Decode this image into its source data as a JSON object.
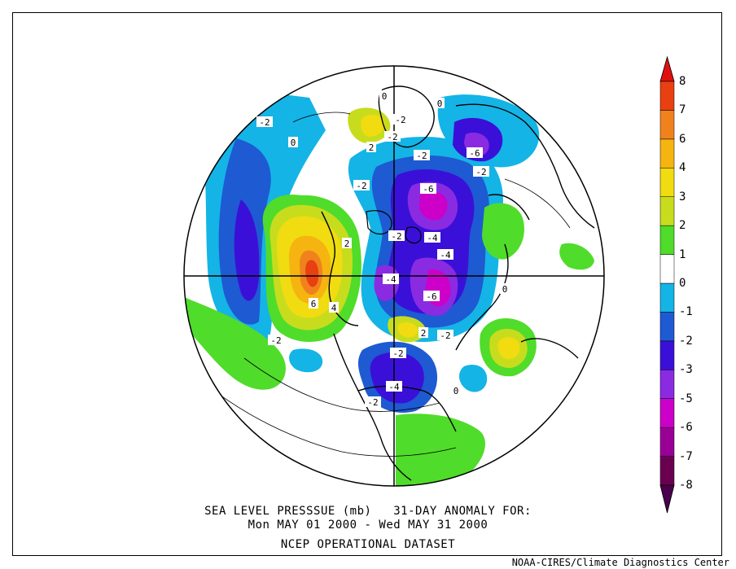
{
  "title": {
    "line1": "SEA LEVEL PRESSSUE (mb)   31-DAY ANOMALY FOR:",
    "line2": "Mon MAY 01 2000 - Wed MAY 31 2000",
    "line3": "NCEP OPERATIONAL DATASET"
  },
  "credit": "NOAA-CIRES/Climate Diagnostics Center",
  "colorbar": {
    "labels": [
      "8",
      "7",
      "6",
      "4",
      "3",
      "2",
      "1",
      "0",
      "-1",
      "-2",
      "-3",
      "-5",
      "-6",
      "-7",
      "-8"
    ],
    "colors": [
      "#6b0050",
      "#9a0096",
      "#cc00c8",
      "#8a2be2",
      "#3a10d8",
      "#1e5ad2",
      "#14b4e6",
      "#ffffff",
      "#50dc2a",
      "#c8dc1e",
      "#f0dc10",
      "#f5b40f",
      "#f0821e",
      "#e84010"
    ],
    "top_arrow_color": "#e01010",
    "bottom_arrow_color": "#4a004a"
  },
  "map_labels": [
    "-2",
    "-2",
    "-2",
    "-2",
    "-2",
    "-2",
    "-2",
    "-2",
    "-2",
    "-2",
    "-6",
    "-4",
    "-4",
    "-6",
    "-6",
    "-4",
    "-4",
    "-2",
    "2",
    "2",
    "2",
    "4",
    "6",
    "0",
    "0",
    "0",
    "0",
    "0"
  ]
}
